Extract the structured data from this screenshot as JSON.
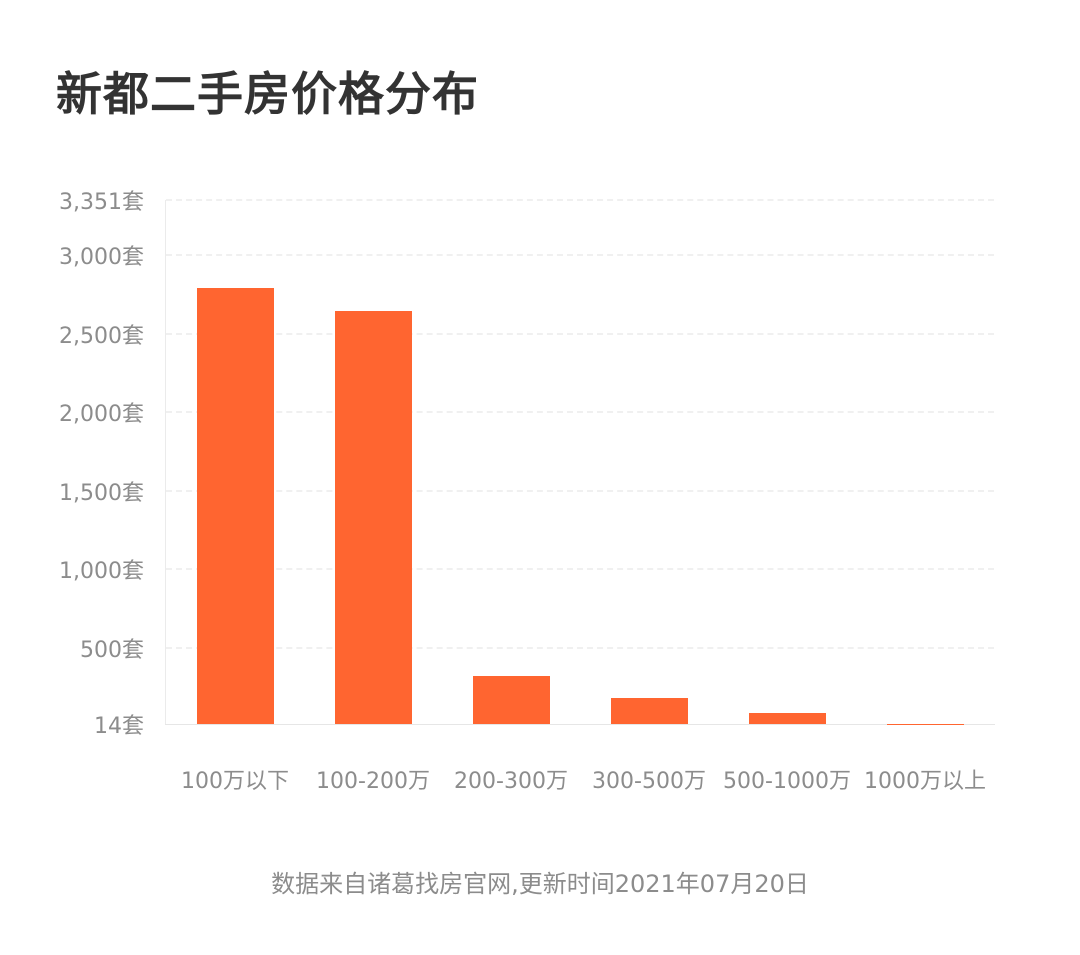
{
  "title": "新都二手房价格分布",
  "footer": "数据来自诸葛找房官网,更新时间2021年07月20日",
  "colors": {
    "bar": "#ff6530",
    "title": "#333333",
    "axis_text": "#8c8c8c",
    "grid": "#f0f0f0"
  },
  "y_axis": {
    "ticks": [
      {
        "label": "3,351套",
        "value": 3351
      },
      {
        "label": "3,000套",
        "value": 3000
      },
      {
        "label": "2,500套",
        "value": 2500
      },
      {
        "label": "2,000套",
        "value": 2000
      },
      {
        "label": "1,500套",
        "value": 1500
      },
      {
        "label": "1,000套",
        "value": 1000
      },
      {
        "label": "500套",
        "value": 500
      },
      {
        "label": "14套",
        "value": 14
      }
    ]
  },
  "chart_data": {
    "type": "bar",
    "title": "新都二手房价格分布",
    "xlabel": "",
    "ylabel": "",
    "unit": "套",
    "categories": [
      "100万以下",
      "100-200万",
      "200-300万",
      "300-500万",
      "500-1000万",
      "1000万以上"
    ],
    "values": [
      2790,
      2645,
      320,
      180,
      84,
      14
    ],
    "ylim": [
      14,
      3351
    ],
    "yticks": [
      14,
      500,
      1000,
      1500,
      2000,
      2500,
      3000,
      3351
    ],
    "grid": true,
    "legend": null,
    "annotation": "数据来自诸葛找房官网,更新时间2021年07月20日"
  }
}
